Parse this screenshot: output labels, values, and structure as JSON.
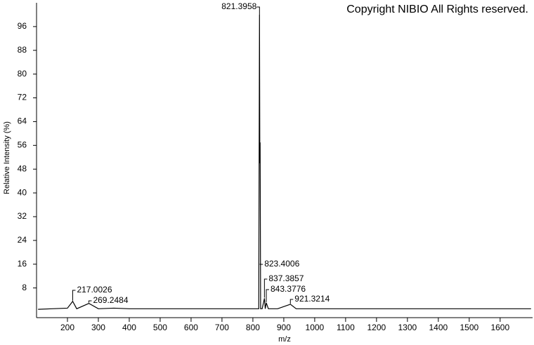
{
  "chart_data": {
    "type": "line",
    "copyright": "Copyright NIBIO All Rights reserved.",
    "xlabel": "m/z",
    "ylabel": "Relative Intensity (%)",
    "x": [
      105,
      150,
      200,
      217.0026,
      230,
      269.2484,
      300,
      350,
      400,
      500,
      600,
      700,
      800,
      815,
      819,
      821.3958,
      822.5,
      823.4006,
      825,
      830,
      837.3857,
      840,
      843.3776,
      850,
      880,
      921.3214,
      940,
      1000,
      1200,
      1400,
      1600,
      1700
    ],
    "series": [
      {
        "name": "spectrum",
        "color": "#000000",
        "values": [
          0.8,
          1,
          1.2,
          3.5,
          1,
          2.8,
          1,
          1.2,
          1,
          1,
          1,
          1,
          1,
          1,
          1,
          100,
          50,
          57,
          1,
          1,
          4.5,
          1,
          3,
          1,
          1,
          2.5,
          1,
          1,
          1,
          1,
          1,
          1
        ]
      }
    ],
    "xlim": [
      100,
      1705
    ],
    "ylim": [
      -2,
      104
    ],
    "xticks": [
      200,
      300,
      400,
      500,
      600,
      700,
      800,
      900,
      1000,
      1100,
      1200,
      1300,
      1400,
      1500,
      1600
    ],
    "yticks": [
      8,
      16,
      24,
      32,
      40,
      48,
      56,
      64,
      72,
      80,
      88,
      96
    ]
  }
}
